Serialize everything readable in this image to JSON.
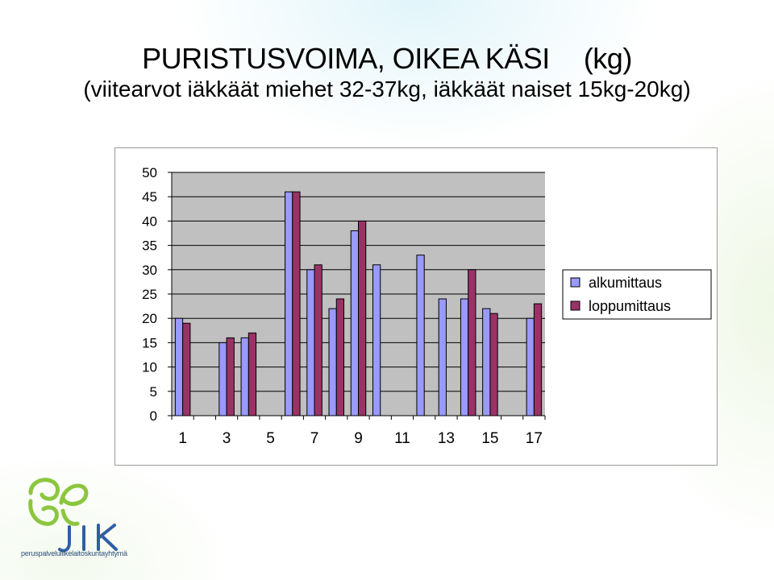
{
  "header": {
    "title": "PURISTUSVOIMA, OIKEA KÄSI",
    "title_unit": "(kg)",
    "subtitle": "(viitearvot iäkkäät miehet 32-37kg, iäkkäät naiset 15kg-20kg)"
  },
  "logo": {
    "name": "JIK",
    "caption": "peruspalveluliikelaitoskuntayhtymä"
  },
  "colors": {
    "plot_bg": "#c0c0c0",
    "series1": "#9999ff",
    "series2": "#993366",
    "logo_green": "#8cc63f",
    "logo_blue": "#2e5fa3"
  },
  "chart_data": {
    "type": "bar",
    "categories": [
      "1",
      "2",
      "3",
      "4",
      "5",
      "6",
      "7",
      "8",
      "9",
      "10",
      "11",
      "12",
      "13",
      "14",
      "15",
      "16",
      "17"
    ],
    "x_tick_labels": [
      "1",
      "3",
      "5",
      "7",
      "9",
      "11",
      "13",
      "15",
      "17"
    ],
    "ylim": [
      0,
      50
    ],
    "y_ticks": [
      "0",
      "5",
      "10",
      "15",
      "20",
      "25",
      "30",
      "35",
      "40",
      "45",
      "50"
    ],
    "grid": true,
    "legend_position": "right",
    "series": [
      {
        "name": "alkumittaus",
        "values": [
          20,
          null,
          15,
          16,
          null,
          46,
          30,
          22,
          38,
          31,
          null,
          33,
          24,
          24,
          22,
          null,
          20
        ]
      },
      {
        "name": "loppumittaus",
        "values": [
          19,
          null,
          16,
          17,
          null,
          46,
          31,
          24,
          40,
          null,
          null,
          null,
          null,
          30,
          21,
          null,
          23
        ]
      }
    ]
  }
}
